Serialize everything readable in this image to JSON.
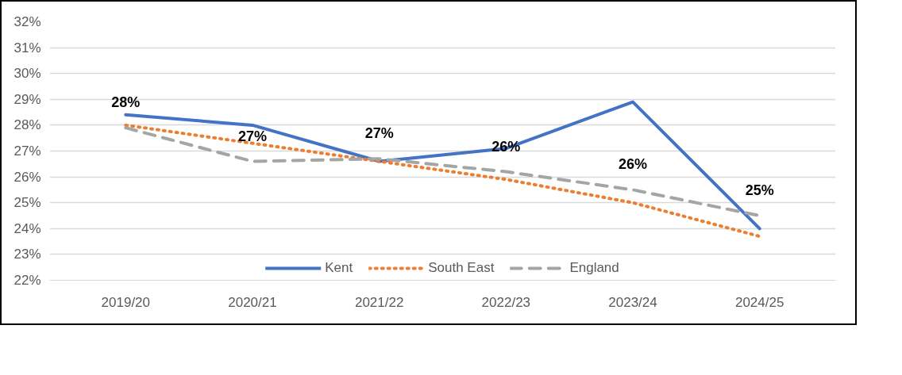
{
  "chart_data": {
    "type": "line",
    "categories": [
      "2019/20",
      "2020/21",
      "2021/22",
      "2022/23",
      "2023/24",
      "2024/25"
    ],
    "series": [
      {
        "name": "Kent",
        "color": "#4472c4",
        "line_style": "solid",
        "values": [
          28.4,
          28.0,
          26.6,
          27.1,
          28.9,
          24.0
        ]
      },
      {
        "name": "South East",
        "color": "#ed7d31",
        "line_style": "dotted",
        "values": [
          28.0,
          27.3,
          26.6,
          25.9,
          25.0,
          23.7
        ]
      },
      {
        "name": "England",
        "color": "#a5a5a5",
        "line_style": "dashed",
        "values": [
          27.9,
          26.6,
          26.7,
          26.2,
          25.5,
          24.5
        ],
        "value_labels": [
          "28%",
          "27%",
          "27%",
          "26%",
          "26%",
          "25%"
        ]
      }
    ],
    "ylim": [
      22,
      32
    ],
    "yticks": [
      {
        "value": 22,
        "label": "22%"
      },
      {
        "value": 23,
        "label": "23%"
      },
      {
        "value": 24,
        "label": "24%"
      },
      {
        "value": 25,
        "label": "25%"
      },
      {
        "value": 26,
        "label": "26%"
      },
      {
        "value": 27,
        "label": "27%"
      },
      {
        "value": 28,
        "label": "28%"
      },
      {
        "value": 29,
        "label": "29%"
      },
      {
        "value": 30,
        "label": "30%"
      },
      {
        "value": 31,
        "label": "31%"
      },
      {
        "value": 32,
        "label": "32%"
      }
    ],
    "grid": "y",
    "legend": "bottom",
    "marker": "none"
  }
}
